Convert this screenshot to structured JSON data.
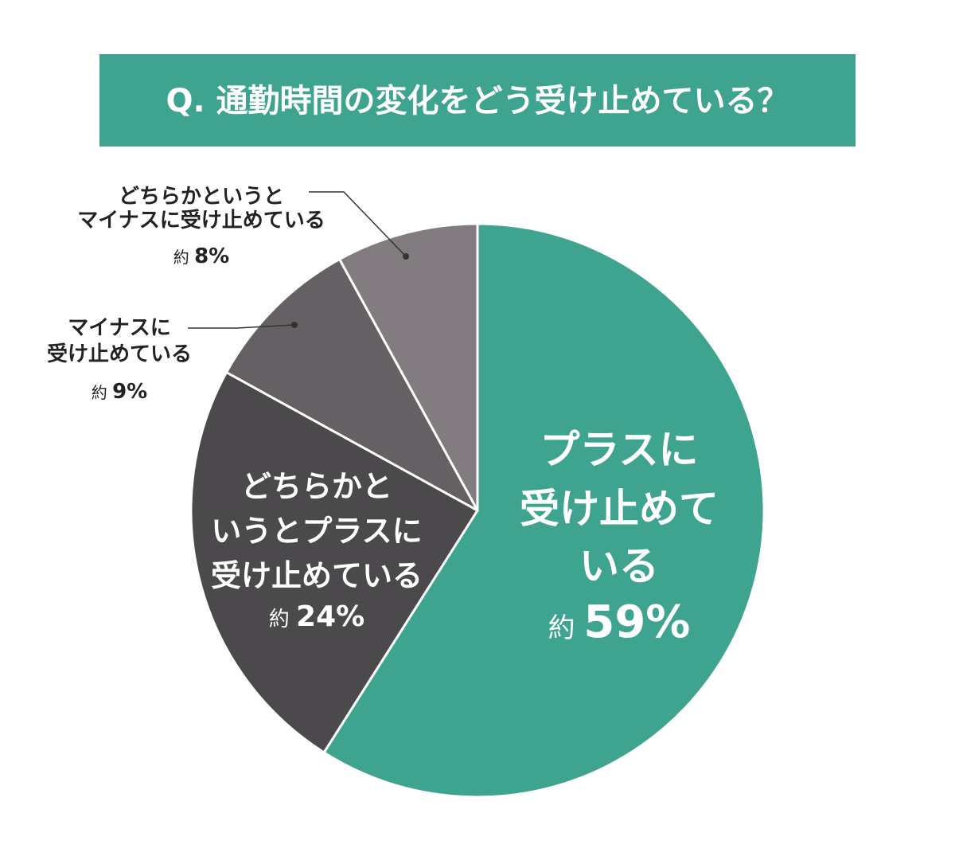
{
  "title": "Q. 通勤時間の変化をどう受け止めている？",
  "colors": {
    "title_bg": "#3ea48f",
    "plus": "#3ea48f",
    "somewhat_plus": "#4b494c",
    "minus": "#646064",
    "somewhat_minus": "#827c80",
    "slice_border": "#ffffff",
    "leader": "#333333"
  },
  "chart_data": {
    "type": "pie",
    "start": "12 o'clock, clockwise",
    "slices": [
      {
        "key": "plus",
        "label_lines": [
          "プラスに",
          "受け止めて",
          "いる"
        ],
        "prefix": "約",
        "value_text": "59%",
        "value": 59
      },
      {
        "key": "somewhat_plus",
        "label_lines": [
          "どちらかと",
          "いうとプラスに",
          "受け止めている"
        ],
        "prefix": "約",
        "value_text": "24%",
        "value": 24
      },
      {
        "key": "minus",
        "label_lines": [
          "マイナスに",
          "受け止めている"
        ],
        "prefix": "約",
        "value_text": "9%",
        "value": 9
      },
      {
        "key": "somewhat_minus",
        "label_lines": [
          "どちらかというと",
          "マイナスに受け止めている"
        ],
        "prefix": "約",
        "value_text": "8%",
        "value": 8
      }
    ]
  }
}
